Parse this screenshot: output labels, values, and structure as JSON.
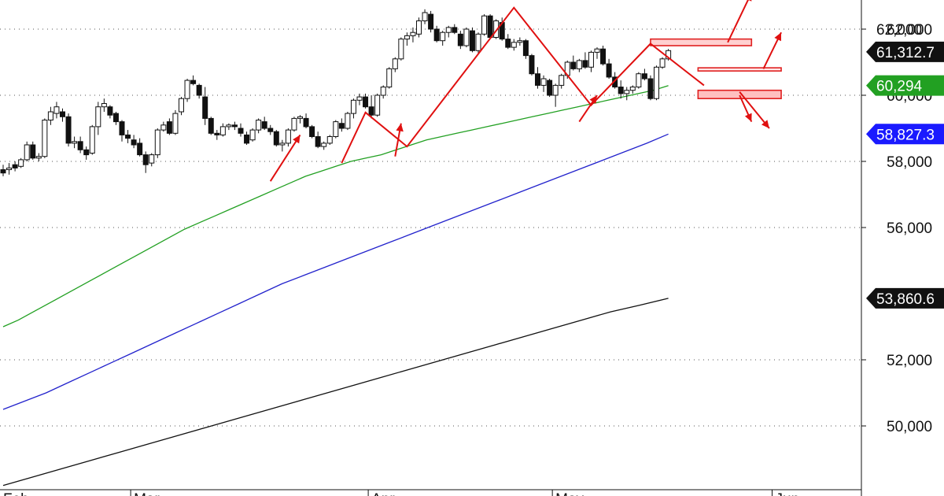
{
  "chart_data": {
    "type": "candlestick",
    "title": "",
    "xlabel": "",
    "ylabel": "",
    "ylim": [
      48000,
      62600
    ],
    "grid": true,
    "y_ticks": [
      "62,000",
      "60,000",
      "58,000",
      "56,000",
      "52,000",
      "50,000"
    ],
    "y_tick_values": [
      62000,
      60000,
      58000,
      56000,
      52000,
      50000
    ],
    "x_labels": [
      "Feb",
      "Mar",
      "Apr",
      "May",
      "Jun"
    ],
    "x_label_index": [
      0,
      22,
      62,
      93,
      130
    ],
    "candles": [
      [
        57750,
        57900,
        57550,
        57650
      ],
      [
        57750,
        57950,
        57600,
        57800
      ],
      [
        57900,
        58000,
        57700,
        57800
      ],
      [
        57850,
        58100,
        57800,
        58050
      ],
      [
        58050,
        58600,
        58000,
        58500
      ],
      [
        58500,
        58600,
        58050,
        58100
      ],
      [
        58100,
        58250,
        58000,
        58150
      ],
      [
        58150,
        59300,
        58100,
        59250
      ],
      [
        59250,
        59650,
        59100,
        59500
      ],
      [
        59450,
        59800,
        59300,
        59650
      ],
      [
        59500,
        59600,
        59200,
        59350
      ],
      [
        59350,
        59450,
        58450,
        58550
      ],
      [
        58550,
        58750,
        58400,
        58600
      ],
      [
        58600,
        58750,
        58250,
        58350
      ],
      [
        58350,
        58450,
        58050,
        58200
      ],
      [
        58250,
        59100,
        58200,
        59050
      ],
      [
        59050,
        59800,
        58800,
        59650
      ],
      [
        59650,
        59900,
        59500,
        59750
      ],
      [
        59650,
        59700,
        59300,
        59400
      ],
      [
        59450,
        59500,
        59100,
        59200
      ],
      [
        59200,
        59250,
        58600,
        58800
      ],
      [
        58800,
        58950,
        58550,
        58700
      ],
      [
        58650,
        58800,
        58400,
        58500
      ],
      [
        58550,
        58700,
        58150,
        58200
      ],
      [
        58200,
        58300,
        57650,
        57900
      ],
      [
        57950,
        58250,
        57850,
        58200
      ],
      [
        58200,
        59000,
        58100,
        58950
      ],
      [
        58950,
        59200,
        58900,
        59100
      ],
      [
        59200,
        59300,
        58800,
        58850
      ],
      [
        58850,
        59550,
        58800,
        59450
      ],
      [
        59500,
        59950,
        59400,
        59900
      ],
      [
        59900,
        60500,
        59800,
        60450
      ],
      [
        60450,
        60600,
        60300,
        60350
      ],
      [
        60300,
        60350,
        59900,
        60000
      ],
      [
        59950,
        60250,
        59100,
        59300
      ],
      [
        59300,
        59350,
        58800,
        58850
      ],
      [
        58850,
        58950,
        58650,
        58800
      ],
      [
        58800,
        59150,
        58750,
        59050
      ],
      [
        59050,
        59150,
        58950,
        59100
      ],
      [
        59100,
        59200,
        58950,
        59050
      ],
      [
        59000,
        59150,
        58750,
        58850
      ],
      [
        58800,
        58900,
        58500,
        58550
      ],
      [
        58650,
        59000,
        58600,
        58950
      ],
      [
        58950,
        59300,
        58850,
        59250
      ],
      [
        59200,
        59350,
        58950,
        59000
      ],
      [
        59000,
        59100,
        58800,
        58900
      ],
      [
        58900,
        58950,
        58450,
        58500
      ],
      [
        58500,
        58650,
        58300,
        58550
      ],
      [
        58550,
        59000,
        58450,
        58950
      ],
      [
        58950,
        59350,
        58900,
        59300
      ],
      [
        59300,
        59400,
        59150,
        59350
      ],
      [
        59300,
        59450,
        59000,
        59050
      ],
      [
        59050,
        59100,
        58700,
        58750
      ],
      [
        58750,
        58900,
        58400,
        58450
      ],
      [
        58450,
        58600,
        58350,
        58550
      ],
      [
        58550,
        58800,
        58500,
        58750
      ],
      [
        58750,
        59250,
        58700,
        59200
      ],
      [
        59150,
        59300,
        58900,
        59000
      ],
      [
        59000,
        59500,
        58950,
        59450
      ],
      [
        59450,
        59900,
        59300,
        59850
      ],
      [
        59850,
        60050,
        59700,
        59950
      ],
      [
        59950,
        60050,
        59600,
        59650
      ],
      [
        59650,
        60000,
        59300,
        59400
      ],
      [
        59400,
        60050,
        59350,
        60000
      ],
      [
        60000,
        60300,
        59900,
        60250
      ],
      [
        60250,
        60850,
        60200,
        60800
      ],
      [
        60800,
        61150,
        60700,
        61100
      ],
      [
        61100,
        61750,
        61050,
        61700
      ],
      [
        61700,
        61900,
        61500,
        61800
      ],
      [
        61800,
        62050,
        61600,
        61900
      ],
      [
        61850,
        62350,
        61750,
        62250
      ],
      [
        62250,
        62600,
        62150,
        62500
      ],
      [
        62450,
        62550,
        61900,
        62000
      ],
      [
        62000,
        62100,
        61600,
        61650
      ],
      [
        61650,
        61950,
        61500,
        61900
      ],
      [
        61900,
        62100,
        61750,
        62050
      ],
      [
        62050,
        62150,
        61850,
        61900
      ],
      [
        61850,
        61950,
        61400,
        61500
      ],
      [
        61500,
        62050,
        61450,
        62000
      ],
      [
        61950,
        62050,
        61300,
        61350
      ],
      [
        61350,
        61900,
        61250,
        61850
      ],
      [
        61850,
        62450,
        61800,
        62400
      ],
      [
        62400,
        62450,
        61700,
        61750
      ],
      [
        61750,
        62300,
        61700,
        62250
      ],
      [
        62200,
        62350,
        61650,
        61700
      ],
      [
        61700,
        61850,
        61400,
        61450
      ],
      [
        61450,
        61700,
        61350,
        61600
      ],
      [
        61600,
        61750,
        61500,
        61650
      ],
      [
        61650,
        61700,
        61100,
        61200
      ],
      [
        61200,
        61250,
        60600,
        60650
      ],
      [
        60650,
        60850,
        60200,
        60300
      ],
      [
        60300,
        60600,
        60100,
        60500
      ],
      [
        60450,
        60500,
        59950,
        60000
      ],
      [
        60000,
        60350,
        59650,
        60300
      ],
      [
        60300,
        60650,
        60200,
        60600
      ],
      [
        60600,
        61050,
        60500,
        61000
      ],
      [
        61000,
        61200,
        60750,
        60800
      ],
      [
        60800,
        61100,
        60700,
        61050
      ],
      [
        61050,
        61300,
        60800,
        60850
      ],
      [
        60850,
        61350,
        60700,
        61300
      ],
      [
        61300,
        61450,
        61100,
        61400
      ],
      [
        61400,
        61500,
        60900,
        60950
      ],
      [
        60950,
        61100,
        60500,
        60550
      ],
      [
        60550,
        60700,
        60200,
        60250
      ],
      [
        60250,
        60450,
        59900,
        60050
      ],
      [
        60050,
        60250,
        59850,
        60150
      ],
      [
        60150,
        60300,
        60050,
        60250
      ],
      [
        60250,
        60700,
        60200,
        60650
      ],
      [
        60650,
        60800,
        60450,
        60500
      ],
      [
        60500,
        60600,
        59850,
        59900
      ],
      [
        59900,
        60900,
        59850,
        60850
      ],
      [
        60850,
        61150,
        60800,
        61100
      ],
      [
        61100,
        61400,
        61050,
        61350
      ]
    ],
    "series": [
      {
        "name": "",
        "color": "#22a022",
        "values": [
          53000,
          53200,
          53450,
          53700,
          53950,
          54200,
          54450,
          54700,
          54950,
          55200,
          55450,
          55700,
          55950,
          56150,
          56350,
          56550,
          56750,
          56950,
          57150,
          57350,
          57550,
          57700,
          57850,
          58000,
          58100,
          58200,
          58350,
          58500,
          58650,
          58750,
          58850,
          58950,
          59050,
          59150,
          59250,
          59350,
          59450,
          59550,
          59650,
          59750,
          59850,
          59950,
          60050,
          60150,
          60294
        ]
      },
      {
        "name": "",
        "color": "#2222cc",
        "values": [
          50500,
          50750,
          51000,
          51300,
          51600,
          51900,
          52200,
          52500,
          52800,
          53100,
          53400,
          53700,
          54000,
          54300,
          54550,
          54800,
          55050,
          55300,
          55550,
          55800,
          56050,
          56300,
          56550,
          56800,
          57050,
          57300,
          57550,
          57800,
          58050,
          58300,
          58550,
          58827.3
        ]
      },
      {
        "name": "",
        "color": "#111111",
        "values": [
          48200,
          48450,
          48700,
          48950,
          49200,
          49450,
          49700,
          49950,
          50200,
          50450,
          50700,
          50950,
          51200,
          51450,
          51700,
          51950,
          52200,
          52450,
          52700,
          52950,
          53200,
          53450,
          53650,
          53860.6
        ]
      }
    ],
    "zigzag": [
      [
        57,
        57950
      ],
      [
        61,
        59480
      ],
      [
        68,
        58450
      ],
      [
        86,
        62650
      ],
      [
        99,
        59700
      ],
      [
        109,
        61560
      ],
      [
        118,
        60300
      ]
    ],
    "resistance_boxes": [
      {
        "x0": 109,
        "x1": 126,
        "y0": 61500,
        "y1": 61700,
        "fill": "#ffd0d0"
      },
      {
        "x0": 117,
        "x1": 131,
        "y0": 60750,
        "y1": 60830,
        "fill": "#ffe8e8"
      },
      {
        "x0": 117,
        "x1": 131,
        "y0": 59900,
        "y1": 60150,
        "fill": "#ffc0c0"
      }
    ],
    "arrows": [
      {
        "x": 45,
        "y": 57400,
        "dx": 5,
        "dy": 1400
      },
      {
        "x": 66,
        "y": 58150,
        "dx": 1,
        "dy": 1000
      },
      {
        "x": 97,
        "y": 59200,
        "dx": 3,
        "dy": 800
      },
      {
        "x": 122,
        "y": 61600,
        "dx": 4,
        "dy": 1500
      },
      {
        "x": 128,
        "y": 60800,
        "dx": 3,
        "dy": 1100
      },
      {
        "x": 124,
        "y": 60100,
        "dx": 5,
        "dy": -1100
      },
      {
        "x": 124,
        "y": 60000,
        "dx": 2,
        "dy": -800
      }
    ],
    "price_tags": [
      {
        "label": "62,000",
        "value": 62000,
        "bg": "#ffffff",
        "color": "#111111"
      },
      {
        "label": "61,312.7",
        "value": 61312.7,
        "bg": "#111111",
        "color": "#ffffff"
      },
      {
        "label": "60,294",
        "value": 60294,
        "bg": "#22a022",
        "color": "#ffffff"
      },
      {
        "label": "58,827.3",
        "value": 58827.3,
        "bg": "#1a1aff",
        "color": "#ffffff"
      },
      {
        "label": "53,860.6",
        "value": 53860.6,
        "bg": "#111111",
        "color": "#ffffff"
      }
    ]
  }
}
